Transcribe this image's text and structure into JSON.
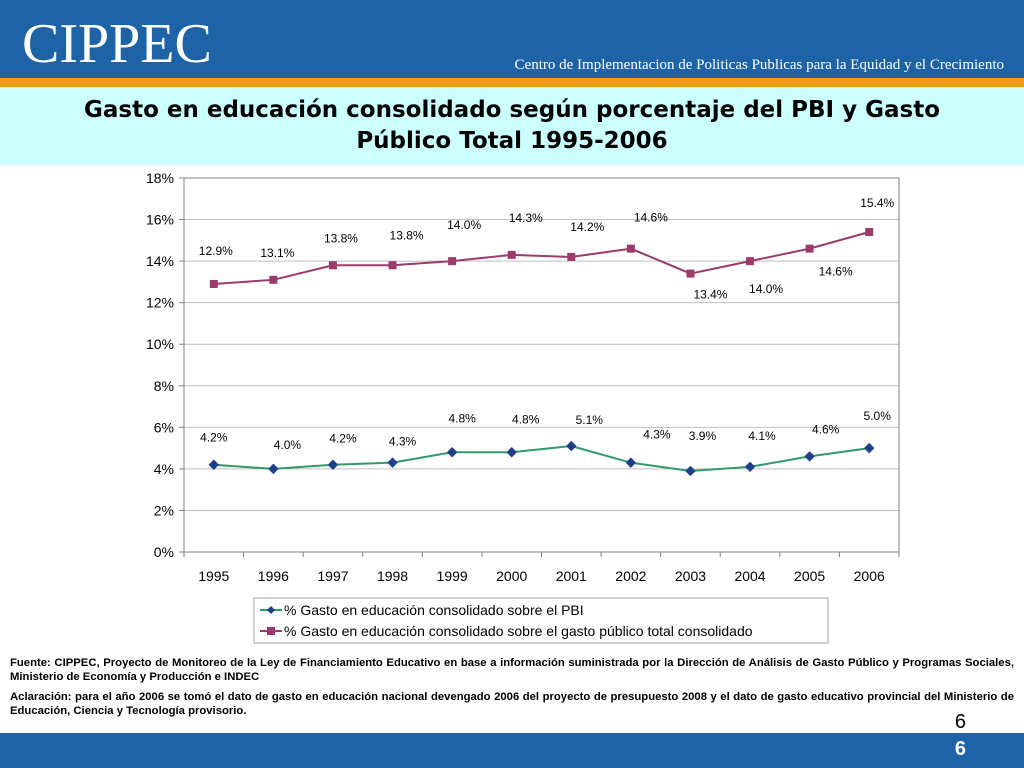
{
  "header": {
    "logo": "CIPPEC",
    "tagline": "Centro de Implementacion de Politicas Publicas para la Equidad y el Crecimiento"
  },
  "slide": {
    "title_line1": "Gasto en educación consolidado según porcentaje del PBI y Gasto",
    "title_line2": "Público Total 1995-2006",
    "source_note": "Fuente: CIPPEC, Proyecto de Monitoreo de la Ley de Financiamiento Educativo en base a información suministrada por la Dirección de Análisis de Gasto Público y Programas Sociales, Ministerio de Economía y Producción e INDEC",
    "clarification_note": "Aclaración: para el año 2006 se tomó el dato de gasto en educación nacional devengado 2006 del proyecto de presupuesto 2008 y el dato de gasto educativo provincial  del Ministerio de Educación, Ciencia y Tecnología provisorio.",
    "page_number": "6"
  },
  "colors": {
    "header_blue": "#1e63a6",
    "orange_band": "#f39c12",
    "title_bg": "#ccffff",
    "series_pbi": "#2e9a6b",
    "series_pbi_marker": "#1f3f8a",
    "series_total": "#9b3a6b"
  },
  "chart_data": {
    "type": "line",
    "categories": [
      "1995",
      "1996",
      "1997",
      "1998",
      "1999",
      "2000",
      "2001",
      "2002",
      "2003",
      "2004",
      "2005",
      "2006"
    ],
    "ylim": [
      0,
      18
    ],
    "yticks": [
      "0%",
      "2%",
      "4%",
      "6%",
      "8%",
      "10%",
      "12%",
      "14%",
      "16%",
      "18%"
    ],
    "grid": true,
    "legend_position": "bottom",
    "series": [
      {
        "name": "% Gasto en educación consolidado sobre el PBI",
        "marker": "diamond",
        "values": [
          4.2,
          4.0,
          4.2,
          4.3,
          4.8,
          4.8,
          5.1,
          4.3,
          3.9,
          4.1,
          4.6,
          5.0
        ],
        "labels": [
          "4.2%",
          "4.0%",
          "4.2%",
          "4.3%",
          "4.8%",
          "4.8%",
          "5.1%",
          "4.3%",
          "3.9%",
          "4.1%",
          "4.6%",
          "5.0%"
        ]
      },
      {
        "name": "% Gasto en educación consolidado sobre el gasto público total consolidado",
        "marker": "square",
        "values": [
          12.9,
          13.1,
          13.8,
          13.8,
          14.0,
          14.3,
          14.2,
          14.6,
          13.4,
          14.0,
          14.6,
          15.4
        ],
        "labels": [
          "12.9%",
          "13.1%",
          "13.8%",
          "13.8%",
          "14.0%",
          "14.3%",
          "14.2%",
          "14.6%",
          "13.4%",
          "14.0%",
          "14.6%",
          "15.4%"
        ]
      }
    ]
  }
}
